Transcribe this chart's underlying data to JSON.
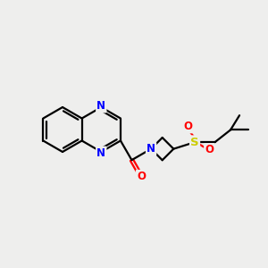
{
  "background_color": "#eeeeed",
  "bond_color": "#000000",
  "nitrogen_color": "#0000ff",
  "oxygen_color": "#ff0000",
  "sulfur_color": "#cccc00",
  "figsize": [
    3.0,
    3.0
  ],
  "dpi": 100,
  "xlim": [
    0,
    12
  ],
  "ylim": [
    0,
    12
  ]
}
